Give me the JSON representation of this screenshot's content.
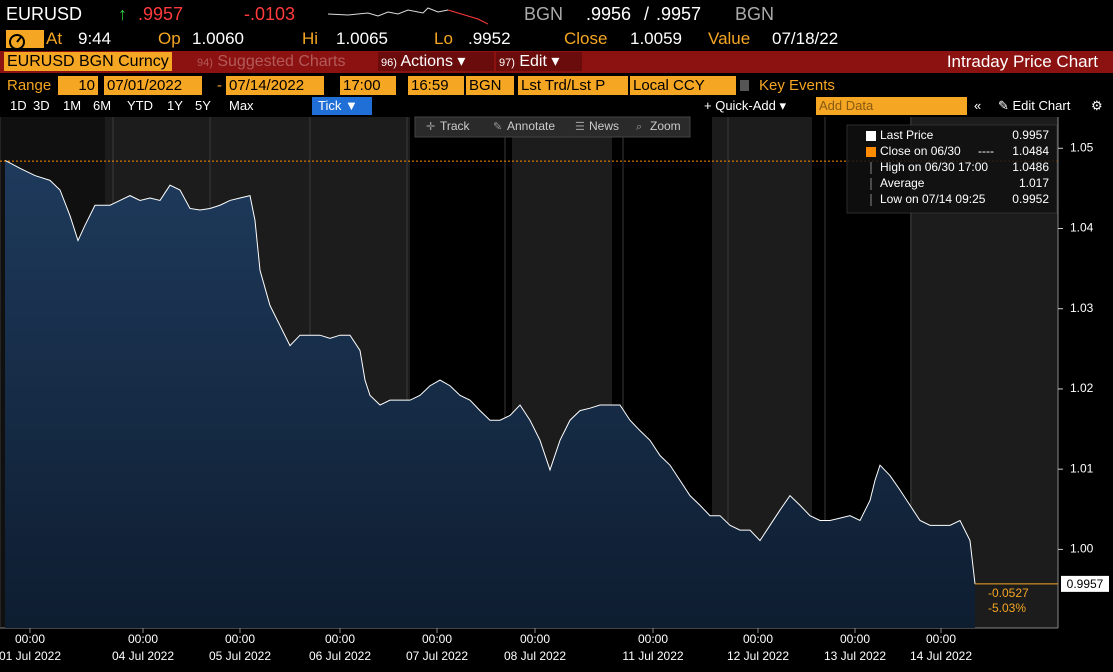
{
  "header": {
    "ticker": "EURUSD",
    "arrow": "↑",
    "price": ".9957",
    "change": "-.0103",
    "source": "BGN",
    "bid": ".9956",
    "sep": "/",
    "ask": ".9957",
    "source2": "BGN"
  },
  "quote": {
    "at_label": "At",
    "at": "9:44",
    "op_label": "Op",
    "op": "1.0060",
    "hi_label": "Hi",
    "hi": "1.0065",
    "lo_label": "Lo",
    "lo": ".9952",
    "close_label": "Close",
    "close": "1.0059",
    "value_label": "Value",
    "value": "07/18/22"
  },
  "menu": {
    "security": "EURUSD BGN Curncy",
    "items": [
      {
        "num": "94)",
        "label": "Suggested Charts"
      },
      {
        "num": "96)",
        "label": "Actions"
      },
      {
        "num": "97)",
        "label": "Edit"
      }
    ],
    "title": "Intraday Price Chart"
  },
  "range_bar": {
    "label": "Range",
    "count": "10",
    "start": "07/01/2022",
    "end": "07/14/2022",
    "t1": "17:00",
    "t2": "16:59",
    "source": "BGN",
    "field": "Lst Trd/Lst P",
    "ccy": "Local CCY",
    "key": "Key Events"
  },
  "periods": [
    "1D",
    "3D",
    "1M",
    "6M",
    "YTD",
    "1Y",
    "5Y",
    "Max"
  ],
  "tick_button": "Tick",
  "toolbar": {
    "quick_add": "+ Quick-Add",
    "add_data": "Add Data",
    "edit_chart": "Edit Chart"
  },
  "tools": [
    "Track",
    "Annotate",
    "News",
    "Zoom"
  ],
  "chart_data": {
    "type": "area",
    "x": [
      5,
      20,
      35,
      50,
      60,
      70,
      78,
      85,
      95,
      100,
      110,
      120,
      130,
      140,
      150,
      160,
      170,
      180,
      190,
      200,
      210,
      220,
      230,
      240,
      250,
      255,
      260,
      270,
      280,
      290,
      300,
      310,
      320,
      330,
      340,
      350,
      360,
      365,
      370,
      380,
      390,
      400,
      410,
      420,
      430,
      440,
      450,
      460,
      470,
      480,
      490,
      500,
      510,
      520,
      530,
      540,
      550,
      560,
      570,
      580,
      590,
      600,
      610,
      620,
      630,
      640,
      650,
      660,
      670,
      680,
      690,
      700,
      710,
      720,
      730,
      740,
      750,
      760,
      770,
      780,
      790,
      800,
      810,
      820,
      830,
      840,
      850,
      860,
      870,
      875,
      880,
      890,
      900,
      910,
      920,
      930,
      940,
      950,
      960,
      970,
      975
    ],
    "series": [
      {
        "name": "Last Price",
        "color": "#ffffff",
        "last": 0.9957,
        "values": [
          1.0485,
          1.0475,
          1.0466,
          1.046,
          1.0448,
          1.0416,
          1.0385,
          1.0404,
          1.0429,
          1.0429,
          1.0429,
          1.0435,
          1.0441,
          1.0435,
          1.0438,
          1.0435,
          1.0454,
          1.0448,
          1.0425,
          1.0423,
          1.0425,
          1.0429,
          1.0435,
          1.0438,
          1.0441,
          1.041,
          1.0348,
          1.0304,
          1.0279,
          1.0254,
          1.0267,
          1.0267,
          1.0267,
          1.0263,
          1.0267,
          1.0267,
          1.0248,
          1.0211,
          1.0192,
          1.018,
          1.0186,
          1.0186,
          1.0186,
          1.0192,
          1.0204,
          1.0211,
          1.0204,
          1.0192,
          1.0186,
          1.0173,
          1.0161,
          1.0161,
          1.0167,
          1.018,
          1.0161,
          1.0136,
          1.0099,
          1.0136,
          1.0161,
          1.0173,
          1.0176,
          1.018,
          1.018,
          1.018,
          1.0161,
          1.0148,
          1.0136,
          1.0117,
          1.0105,
          1.0086,
          1.0067,
          1.0055,
          1.0042,
          1.0042,
          1.003,
          1.0024,
          1.0024,
          1.0011,
          1.003,
          1.0049,
          1.0067,
          1.0055,
          1.0042,
          1.0036,
          1.0036,
          1.0039,
          1.0042,
          1.0036,
          1.0061,
          1.0086,
          1.0105,
          1.0092,
          1.0074,
          1.0055,
          1.0036,
          1.003,
          1.003,
          1.003,
          1.0036,
          1.0011,
          0.9957
        ]
      }
    ],
    "legend_stats": [
      {
        "label": "Close on 06/30",
        "dash": "----",
        "value": 1.0484,
        "color": "#ff8c00"
      },
      {
        "label": "High on 06/30 17:00",
        "value": 1.0486
      },
      {
        "label": "Average",
        "value": 1.017
      },
      {
        "label": "Low on 07/14 09:25",
        "value": 0.9952
      }
    ],
    "annotations": [
      "-0.0527",
      "-5.03%"
    ],
    "tick_time": "00:00",
    "xlim": [
      0,
      1058
    ],
    "xticks": [
      {
        "value": 30,
        "label": "01 Jul 2022"
      },
      {
        "value": 143,
        "label": "04 Jul 2022"
      },
      {
        "value": 240,
        "label": "05 Jul 2022"
      },
      {
        "value": 340,
        "label": "06 Jul 2022"
      },
      {
        "value": 437,
        "label": "07 Jul 2022"
      },
      {
        "value": 535,
        "label": "08 Jul 2022"
      },
      {
        "value": 653,
        "label": "11 Jul 2022"
      },
      {
        "value": 758,
        "label": "12 Jul 2022"
      },
      {
        "value": 855,
        "label": "13 Jul 2022"
      },
      {
        "value": 941,
        "label": "14 Jul 2022"
      }
    ],
    "ylim": [
      0.9902,
      1.0539
    ],
    "yticks": [
      {
        "value": 1.0,
        "label": "1.00"
      },
      {
        "value": 1.01,
        "label": "1.01"
      },
      {
        "value": 1.02,
        "label": "1.02"
      },
      {
        "value": 1.03,
        "label": "1.03"
      },
      {
        "value": 1.04,
        "label": "1.04"
      },
      {
        "value": 1.05,
        "label": "1.05"
      }
    ]
  }
}
